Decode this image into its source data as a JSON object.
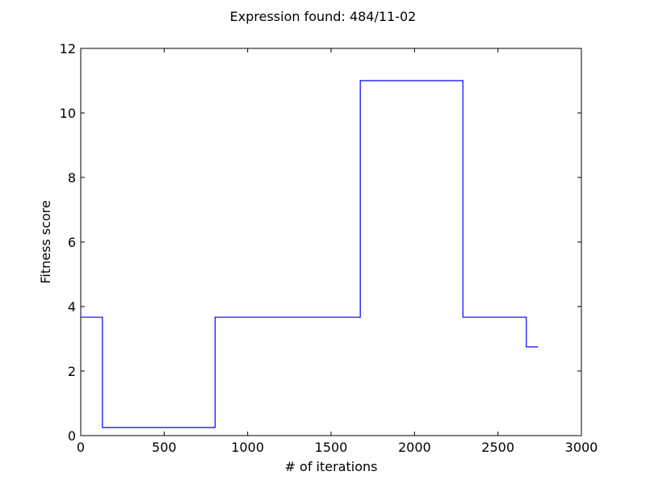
{
  "chart_data": {
    "type": "line",
    "title": "Expression found: 484/11-02",
    "xlabel": "# of iterations",
    "ylabel": "Fitness score",
    "xlim": [
      0,
      3000
    ],
    "ylim": [
      0,
      12
    ],
    "xticks": [
      0,
      500,
      1000,
      1500,
      2000,
      2500,
      3000
    ],
    "yticks": [
      0,
      2,
      4,
      6,
      8,
      10,
      12
    ],
    "grid": false,
    "step": true,
    "line_color": "#0000ff",
    "series": [
      {
        "x": [
          0,
          130,
          130,
          805,
          805,
          1675,
          1675,
          2290,
          2290,
          2670,
          2670,
          2740
        ],
        "y": [
          3.67,
          3.67,
          0.25,
          0.25,
          3.67,
          3.67,
          11.0,
          11.0,
          3.67,
          3.67,
          2.75,
          2.75
        ]
      }
    ]
  }
}
